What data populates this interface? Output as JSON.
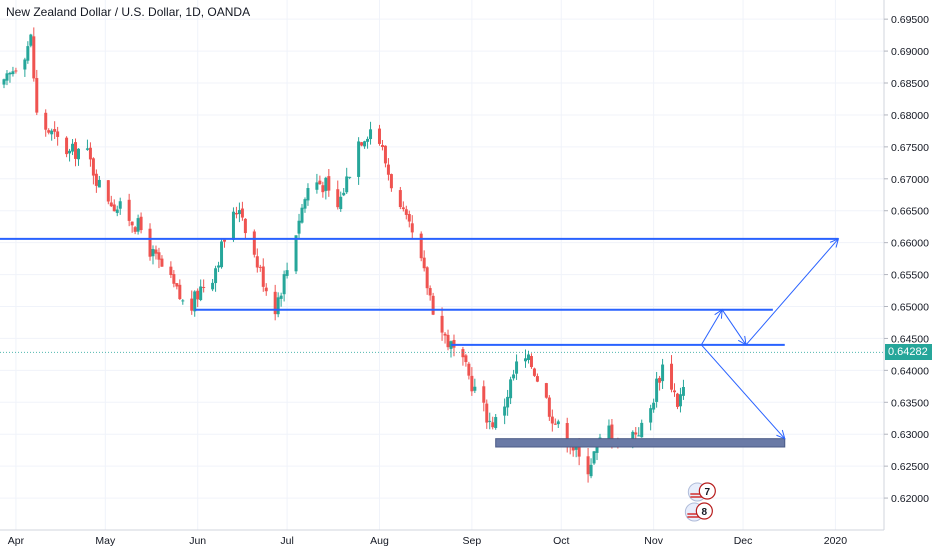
{
  "title": "New Zealand Dollar / U.S. Dollar, 1D, OANDA",
  "last_price": "0.64282",
  "colors": {
    "up": "#26a69a",
    "down": "#ef5350",
    "drawing": "#2962ff",
    "zone": "#6a7aa6",
    "last_price_line": "#26a69a",
    "grid": "#f0f3fa",
    "axis_text": "#131722"
  },
  "chart_data": {
    "type": "candlestick",
    "title": "New Zealand Dollar / U.S. Dollar, 1D, OANDA",
    "ylim": [
      0.615,
      0.698
    ],
    "grid": true,
    "x_tick_labels": [
      "Apr",
      "May",
      "Jun",
      "Jul",
      "Aug",
      "Sep",
      "Oct",
      "Nov",
      "Dec",
      "2020"
    ],
    "y_tick_labels": [
      "0.69500",
      "0.69000",
      "0.68500",
      "0.68000",
      "0.67500",
      "0.67000",
      "0.66500",
      "0.66000",
      "0.65500",
      "0.65000",
      "0.64500",
      "0.64000",
      "0.63500",
      "0.63000",
      "0.62500",
      "0.62000"
    ],
    "y_ticks": [
      0.695,
      0.69,
      0.685,
      0.68,
      0.675,
      0.67,
      0.665,
      0.66,
      0.655,
      0.65,
      0.645,
      0.64,
      0.635,
      0.63,
      0.625,
      0.62
    ],
    "waypoints": [
      [
        0,
        0.6845
      ],
      [
        4,
        0.688
      ],
      [
        7,
        0.69
      ],
      [
        9,
        0.692
      ],
      [
        11,
        0.68
      ],
      [
        14,
        0.678
      ],
      [
        18,
        0.676
      ],
      [
        22,
        0.674
      ],
      [
        27,
        0.675
      ],
      [
        32,
        0.669
      ],
      [
        37,
        0.666
      ],
      [
        42,
        0.664
      ],
      [
        46,
        0.662
      ],
      [
        50,
        0.658
      ],
      [
        53,
        0.656
      ],
      [
        57,
        0.653
      ],
      [
        62,
        0.649
      ],
      [
        66,
        0.653
      ],
      [
        70,
        0.655
      ],
      [
        75,
        0.662
      ],
      [
        79,
        0.666
      ],
      [
        84,
        0.658
      ],
      [
        88,
        0.653
      ],
      [
        91,
        0.65
      ],
      [
        95,
        0.656
      ],
      [
        99,
        0.664
      ],
      [
        103,
        0.67
      ],
      [
        108,
        0.669
      ],
      [
        111,
        0.664
      ],
      [
        115,
        0.67
      ],
      [
        119,
        0.676
      ],
      [
        123,
        0.678
      ],
      [
        126,
        0.676
      ],
      [
        129,
        0.671
      ],
      [
        133,
        0.665
      ],
      [
        137,
        0.661
      ],
      [
        141,
        0.655
      ],
      [
        144,
        0.65
      ],
      [
        147,
        0.646
      ],
      [
        151,
        0.643
      ],
      [
        155,
        0.64
      ],
      [
        159,
        0.636
      ],
      [
        163,
        0.632
      ],
      [
        166,
        0.632
      ],
      [
        170,
        0.638
      ],
      [
        173,
        0.642
      ],
      [
        177,
        0.641
      ],
      [
        180,
        0.638
      ],
      [
        183,
        0.634
      ],
      [
        187,
        0.63
      ],
      [
        190,
        0.629
      ],
      [
        193,
        0.626
      ],
      [
        196,
        0.625
      ],
      [
        199,
        0.628
      ],
      [
        203,
        0.631
      ],
      [
        207,
        0.628
      ],
      [
        210,
        0.63
      ],
      [
        214,
        0.631
      ],
      [
        217,
        0.634
      ],
      [
        219,
        0.638
      ],
      [
        222,
        0.642
      ],
      [
        224,
        0.638
      ],
      [
        226,
        0.635
      ],
      [
        228,
        0.637
      ],
      [
        230,
        0.6428
      ]
    ],
    "horizontal_lines": [
      {
        "y": 0.6606,
        "x_start_day": -2,
        "x_end_day": 280
      },
      {
        "y": 0.6495,
        "x_start_day": 64,
        "x_end_day": 258
      },
      {
        "y": 0.644,
        "x_start_day": 150,
        "x_end_day": 262
      }
    ],
    "support_zone": {
      "y_top": 0.6293,
      "y_bottom": 0.628,
      "x_start_day": 165,
      "x_end_day": 262
    },
    "arrows": [
      {
        "from": [
          234,
          0.644
        ],
        "to": [
          241,
          0.6495
        ]
      },
      {
        "from": [
          241,
          0.6495
        ],
        "to": [
          249,
          0.644
        ]
      },
      {
        "from": [
          249,
          0.644
        ],
        "to": [
          280,
          0.6606
        ]
      },
      {
        "from": [
          234,
          0.644
        ],
        "to": [
          262,
          0.6293
        ]
      }
    ],
    "event_badges": [
      "7",
      "8"
    ],
    "last_value": 0.64282
  }
}
